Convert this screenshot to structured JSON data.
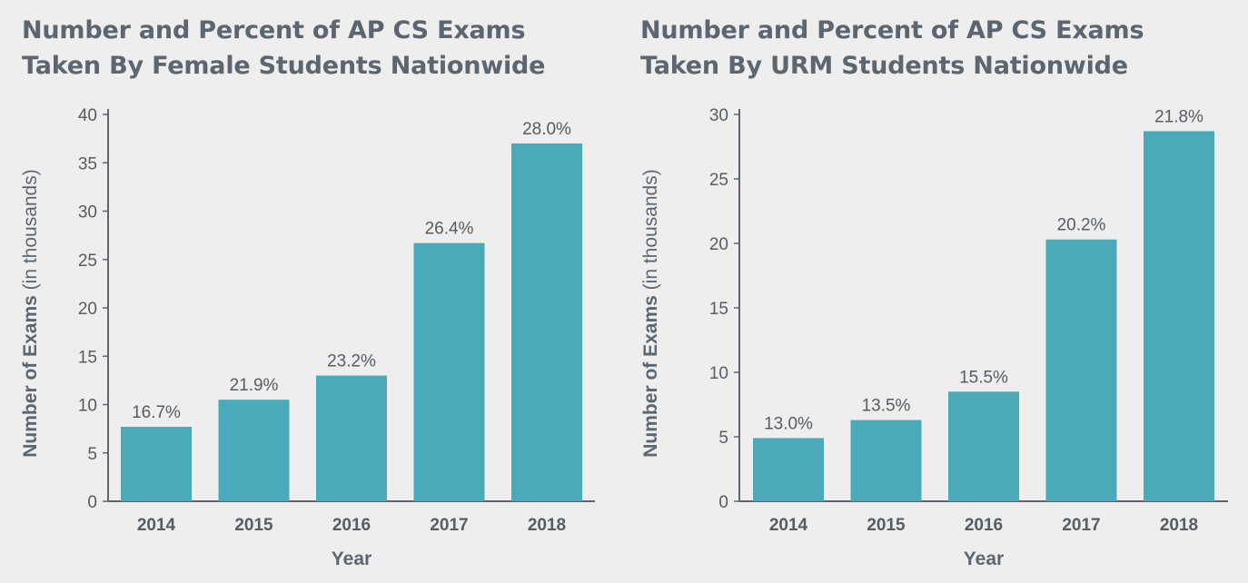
{
  "chart_data": [
    {
      "type": "bar",
      "title_lines": [
        "Number and Percent of AP CS Exams",
        "Taken By Female Students Nationwide"
      ],
      "xlabel": "Year",
      "ylabel_bold": "Number of Exams",
      "ylabel_unit": "(in thousands)",
      "categories": [
        "2014",
        "2015",
        "2016",
        "2017",
        "2018"
      ],
      "values": [
        7.7,
        10.5,
        13.0,
        26.7,
        37.0
      ],
      "data_labels": [
        "16.7%",
        "21.9%",
        "23.2%",
        "26.4%",
        "28.0%"
      ],
      "ylim": [
        0,
        40
      ],
      "yticks": [
        "0",
        "5",
        "10",
        "15",
        "20",
        "25",
        "30",
        "35",
        "40"
      ],
      "bar_color": "#4aaab9",
      "grid": false,
      "legend": "none"
    },
    {
      "type": "bar",
      "title_lines": [
        "Number and Percent of AP CS Exams",
        "Taken By URM Students Nationwide"
      ],
      "xlabel": "Year",
      "ylabel_bold": "Number of Exams",
      "ylabel_unit": "(in thousands)",
      "categories": [
        "2014",
        "2015",
        "2016",
        "2017",
        "2018"
      ],
      "values": [
        4.9,
        6.3,
        8.5,
        20.3,
        28.7
      ],
      "data_labels": [
        "13.0%",
        "13.5%",
        "15.5%",
        "20.2%",
        "21.8%"
      ],
      "ylim": [
        0,
        30
      ],
      "yticks": [
        "0",
        "5",
        "10",
        "15",
        "20",
        "25",
        "30"
      ],
      "bar_color": "#4aaab9",
      "grid": false,
      "legend": "none"
    }
  ],
  "colors": {
    "background": "#eeeeee",
    "text": "#555c63",
    "title": "#5c6670",
    "axis": "#5c6670"
  }
}
